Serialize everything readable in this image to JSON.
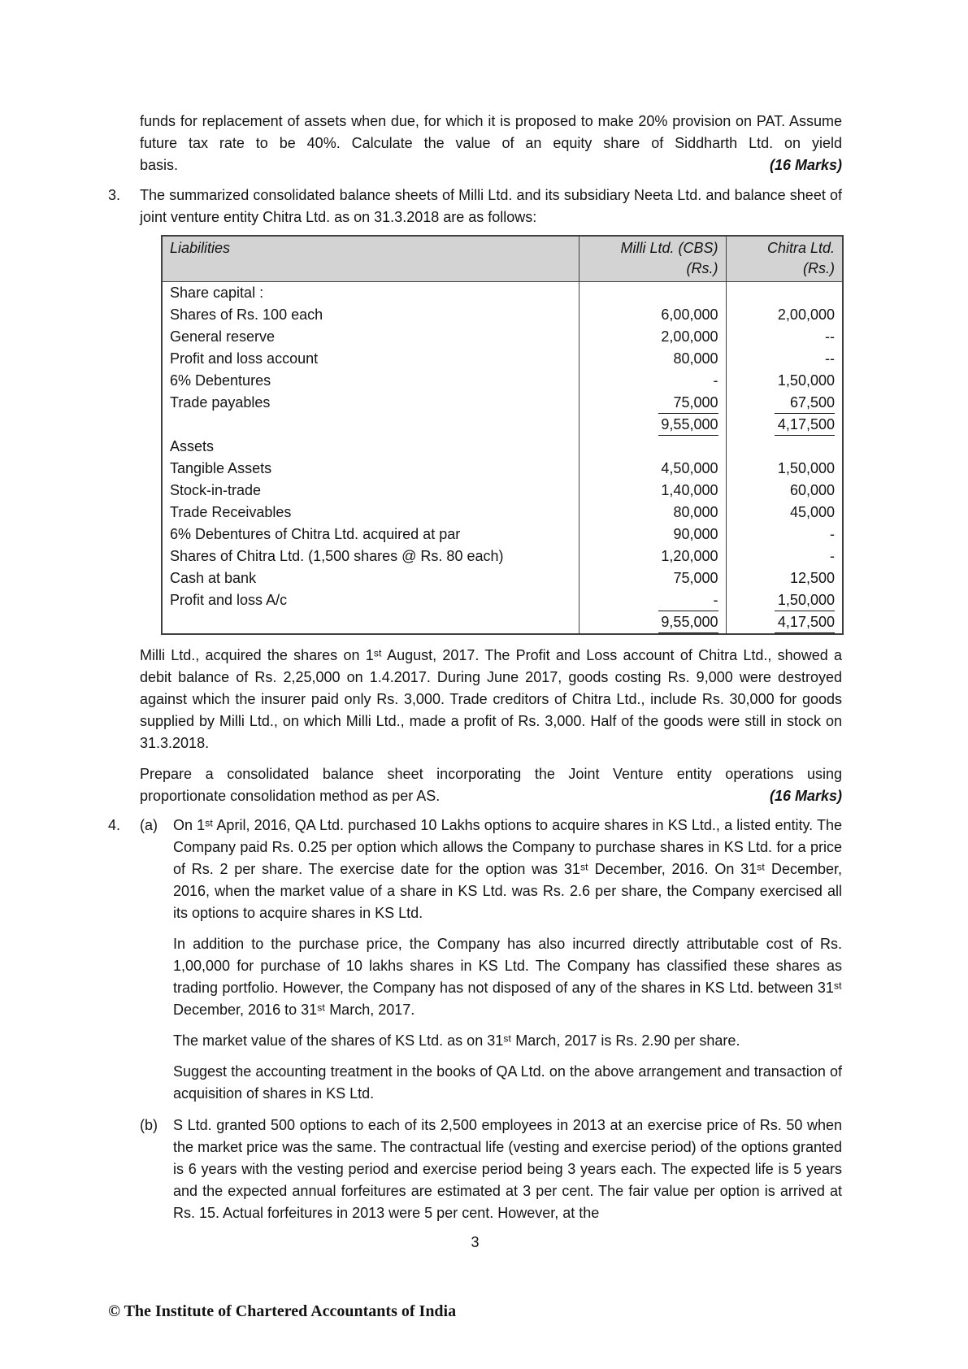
{
  "page": {
    "number": "3",
    "footer": "© The Institute of Chartered Accountants of India"
  },
  "intro": {
    "body": "funds for replacement of assets when due, for which it is proposed to make 20% provision on PAT. Assume future tax rate to be 40%. Calculate the value of an equity share of Siddharth Ltd. on yield",
    "last_line": "basis.",
    "marks": "(16 Marks)"
  },
  "q3": {
    "number": "3.",
    "intro": "The summarized consolidated balance sheets of Milli Ltd. and its subsidiary Neeta Ltd. and balance sheet of joint venture entity Chitra Ltd. as on 31.3.2018 are as follows:",
    "table": {
      "header": {
        "col1": "Liabilities",
        "col2_line1": "Milli Ltd. (CBS)",
        "col2_line2": "(Rs.)",
        "col3_line1": "Chitra Ltd.",
        "col3_line2": "(Rs.)"
      },
      "rows": [
        {
          "label": "Share capital :",
          "milli": "",
          "chitra": "",
          "underline": false
        },
        {
          "label": "Shares of Rs. 100 each",
          "milli": "6,00,000",
          "chitra": "2,00,000",
          "underline": false
        },
        {
          "label": "General reserve",
          "milli": "2,00,000",
          "chitra": "--",
          "underline": false
        },
        {
          "label": "Profit and loss account",
          "milli": "80,000",
          "chitra": "--",
          "underline": false
        },
        {
          "label": "6% Debentures",
          "milli": "-",
          "chitra": "1,50,000",
          "underline": false
        },
        {
          "label": "Trade payables",
          "milli": "75,000",
          "chitra": "67,500",
          "underline": true
        },
        {
          "label": "",
          "milli": "9,55,000",
          "chitra": "4,17,500",
          "underline": true
        },
        {
          "label": "Assets",
          "milli": "",
          "chitra": "",
          "underline": false
        },
        {
          "label": "Tangible Assets",
          "milli": "4,50,000",
          "chitra": "1,50,000",
          "underline": false
        },
        {
          "label": "Stock-in-trade",
          "milli": "1,40,000",
          "chitra": "60,000",
          "underline": false
        },
        {
          "label": "Trade Receivables",
          "milli": "80,000",
          "chitra": "45,000",
          "underline": false
        },
        {
          "label": "6% Debentures of Chitra Ltd. acquired at par",
          "milli": "90,000",
          "chitra": "-",
          "underline": false
        },
        {
          "label": "Shares of Chitra Ltd. (1,500 shares @ Rs. 80 each)",
          "milli": "1,20,000",
          "chitra": "-",
          "underline": false
        },
        {
          "label": "Cash at bank",
          "milli": "75,000",
          "chitra": "12,500",
          "underline": false
        },
        {
          "label": "Profit and loss A/c",
          "milli": "-",
          "chitra": "1,50,000",
          "underline": true
        },
        {
          "label": "",
          "milli": "9,55,000",
          "chitra": "4,17,500",
          "underline": true
        }
      ]
    },
    "para1": "Milli Ltd., acquired the shares on 1ˢᵗ August, 2017.  The Profit and Loss account of Chitra Ltd., showed a debit balance of Rs. 2,25,000 on 1.4.2017.  During June 2017, goods costing Rs. 9,000 were destroyed against which the insurer paid only Rs. 3,000.  Trade creditors of Chitra Ltd., include Rs. 30,000 for goods supplied by Milli Ltd., on which Milli Ltd., made a profit of Rs. 3,000.  Half of the goods were still in stock on 31.3.2018.",
    "para2_body": "Prepare a consolidated balance sheet incorporating the Joint Venture entity operations using",
    "para2_last": "proportionate consolidation method as per AS.",
    "marks": "(16 Marks)"
  },
  "q4": {
    "number": "4.",
    "a_label": "(a)",
    "a_paras": [
      "On 1ˢᵗ April, 2016, QA Ltd. purchased 10 Lakhs options to acquire shares in KS Ltd., a listed entity.  The Company paid Rs. 0.25 per option which allows the Company to purchase shares in KS Ltd. for a price of Rs. 2 per share.  The exercise date for the option was 31ˢᵗ December, 2016. On 31ˢᵗ December, 2016, when the market value of a share in KS Ltd. was Rs. 2.6 per share, the Company exercised all its options to acquire shares in KS Ltd.",
      "In addition to the purchase price, the Company has also incurred directly attributable cost of Rs. 1,00,000 for purchase of 10 lakhs shares in KS Ltd. The Company has classified these shares as trading portfolio.  However, the Company has not disposed of any of the shares in KS Ltd. between 31ˢᵗ December, 2016 to 31ˢᵗ March, 2017.",
      "The market value of the shares of KS Ltd. as on 31ˢᵗ March, 2017 is Rs. 2.90 per share.",
      "Suggest the accounting treatment in the books of QA Ltd. on the above arrangement and transaction of acquisition of shares in KS Ltd."
    ],
    "b_label": "(b)",
    "b_para": "S Ltd. granted 500 options to each of its 2,500 employees in 2013 at an exercise price of Rs. 50 when the market price was the same.  The contractual life (vesting and exercise period) of the options granted is 6 years with the vesting period and exercise period being 3 years each.  The expected life is 5 years and the expected annual forfeitures are estimated at 3 per cent.  The fair value per option is arrived at Rs. 15.  Actual forfeitures in 2013 were 5 per cent.  However, at the"
  }
}
